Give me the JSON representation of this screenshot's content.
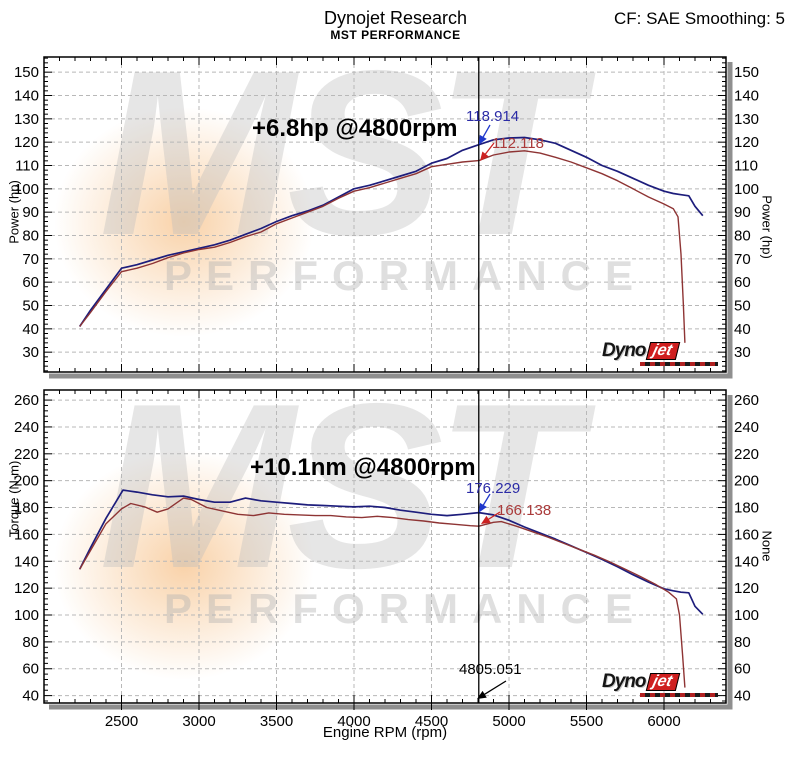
{
  "header": {
    "title": "Dynojet Research",
    "subtitle": "MST PERFORMANCE",
    "cf": "CF: SAE Smoothing: 5"
  },
  "watermark": {
    "big": "MST",
    "small": "PERFORMANCE"
  },
  "logo": {
    "part1": "Dyno",
    "part2": "jet"
  },
  "colors": {
    "curve_blue": "#1d1d7c",
    "curve_red": "#8e3434",
    "label_blue": "#2b2ba6",
    "label_red": "#aa3a3a",
    "grid": "#b8b8b8",
    "shadow": "#8f8f8f",
    "arrow_blue": "#2038cc",
    "arrow_red": "#cc2222"
  },
  "chart_data": [
    {
      "type": "line",
      "annotation": "+6.8hp @4800rpm",
      "ylabel_left": "Power (hp)",
      "ylabel_right": "Power (hp)",
      "xlabel": "",
      "xlim": [
        2000,
        6400
      ],
      "ylim": [
        21.5,
        156.5
      ],
      "yticks_min": 30,
      "yticks_max": 150,
      "ytick_step": 10,
      "ytick_minor": 2,
      "xticks": [
        2500,
        3000,
        3500,
        4000,
        4500,
        5000,
        5500,
        6000
      ],
      "xtick_minor": 100,
      "grid": "dashed",
      "cursor_rpm": 4805.051,
      "series": [
        {
          "name": "mst-tune-power",
          "color": "#1d1d7c",
          "points": [
            [
              2230,
              41
            ],
            [
              2300,
              48
            ],
            [
              2400,
              57
            ],
            [
              2500,
              66
            ],
            [
              2600,
              67.5
            ],
            [
              2700,
              69.5
            ],
            [
              2800,
              71.5
            ],
            [
              2900,
              73
            ],
            [
              3000,
              74.5
            ],
            [
              3100,
              76
            ],
            [
              3200,
              78
            ],
            [
              3300,
              80.5
            ],
            [
              3400,
              83
            ],
            [
              3500,
              86
            ],
            [
              3600,
              88.5
            ],
            [
              3700,
              90.5
            ],
            [
              3800,
              93
            ],
            [
              3900,
              96.5
            ],
            [
              4000,
              100
            ],
            [
              4100,
              101.5
            ],
            [
              4200,
              103.5
            ],
            [
              4300,
              105.5
            ],
            [
              4400,
              107.5
            ],
            [
              4500,
              111
            ],
            [
              4600,
              113
            ],
            [
              4700,
              116.5
            ],
            [
              4805,
              118.914
            ],
            [
              4900,
              121
            ],
            [
              5000,
              121.8
            ],
            [
              5100,
              122
            ],
            [
              5200,
              121
            ],
            [
              5300,
              119.5
            ],
            [
              5400,
              116.5
            ],
            [
              5500,
              113.5
            ],
            [
              5600,
              110
            ],
            [
              5700,
              107.5
            ],
            [
              5800,
              104.5
            ],
            [
              5900,
              101.5
            ],
            [
              6000,
              99
            ],
            [
              6060,
              98
            ],
            [
              6110,
              97.5
            ],
            [
              6160,
              97
            ],
            [
              6200,
              92.5
            ],
            [
              6250,
              88.5
            ]
          ]
        },
        {
          "name": "baseline-power",
          "color": "#8e3434",
          "points": [
            [
              2230,
              41
            ],
            [
              2300,
              47
            ],
            [
              2400,
              56
            ],
            [
              2500,
              64.5
            ],
            [
              2600,
              66
            ],
            [
              2700,
              68
            ],
            [
              2800,
              70.5
            ],
            [
              2900,
              72.5
            ],
            [
              3000,
              74
            ],
            [
              3100,
              75
            ],
            [
              3200,
              77
            ],
            [
              3300,
              79.5
            ],
            [
              3400,
              81.5
            ],
            [
              3500,
              85
            ],
            [
              3600,
              87.5
            ],
            [
              3700,
              90
            ],
            [
              3800,
              92.5
            ],
            [
              3900,
              96
            ],
            [
              4000,
              99
            ],
            [
              4100,
              100.5
            ],
            [
              4200,
              102.5
            ],
            [
              4300,
              104.5
            ],
            [
              4400,
              106.5
            ],
            [
              4500,
              109.5
            ],
            [
              4600,
              110.5
            ],
            [
              4700,
              111.5
            ],
            [
              4805,
              112.118
            ],
            [
              4900,
              114.5
            ],
            [
              5000,
              115.8
            ],
            [
              5100,
              116.3
            ],
            [
              5200,
              115.3
            ],
            [
              5300,
              113.5
            ],
            [
              5400,
              111.5
            ],
            [
              5500,
              109
            ],
            [
              5600,
              106.5
            ],
            [
              5700,
              103.5
            ],
            [
              5800,
              100
            ],
            [
              5900,
              96.5
            ],
            [
              6000,
              93.5
            ],
            [
              6060,
              91.5
            ],
            [
              6090,
              88
            ],
            [
              6110,
              72
            ],
            [
              6125,
              50
            ],
            [
              6135,
              34
            ]
          ]
        }
      ],
      "markers": [
        {
          "text": "118.914",
          "point": [
            4805,
            118.914
          ],
          "color": "#2b2ba6",
          "arrow": "#2038cc"
        },
        {
          "text": "112.118",
          "point": [
            4805,
            112.118
          ],
          "color": "#aa3a3a",
          "arrow": "#cc2222"
        }
      ]
    },
    {
      "type": "line",
      "annotation": "+10.1nm @4800rpm",
      "ylabel_left": "Torque (N-m)",
      "ylabel_right": "None",
      "xlabel": "Engine RPM (rpm)",
      "xlim": [
        2000,
        6400
      ],
      "ylim": [
        34.5,
        267.5
      ],
      "yticks_min": 40,
      "yticks_max": 260,
      "ytick_step": 20,
      "ytick_minor": 4,
      "xticks": [
        2500,
        3000,
        3500,
        4000,
        4500,
        5000,
        5500,
        6000
      ],
      "xtick_minor": 100,
      "grid": "dashed",
      "cursor_rpm": 4805.051,
      "cursor_label": "4805.051",
      "series": [
        {
          "name": "mst-tune-torque",
          "color": "#1d1d7c",
          "points": [
            [
              2230,
              134
            ],
            [
              2300,
              150
            ],
            [
              2400,
              172
            ],
            [
              2510,
              193
            ],
            [
              2600,
              191.5
            ],
            [
              2700,
              189.5
            ],
            [
              2800,
              188
            ],
            [
              2900,
              188.5
            ],
            [
              3000,
              186
            ],
            [
              3100,
              184
            ],
            [
              3200,
              184
            ],
            [
              3300,
              187
            ],
            [
              3400,
              185
            ],
            [
              3500,
              184
            ],
            [
              3600,
              183
            ],
            [
              3700,
              182
            ],
            [
              3800,
              181.5
            ],
            [
              3900,
              181
            ],
            [
              4000,
              180.5
            ],
            [
              4100,
              181
            ],
            [
              4200,
              180
            ],
            [
              4300,
              178
            ],
            [
              4400,
              176.5
            ],
            [
              4500,
              175
            ],
            [
              4600,
              174
            ],
            [
              4700,
              175
            ],
            [
              4805,
              176.229
            ],
            [
              4900,
              174.5
            ],
            [
              5000,
              170.5
            ],
            [
              5100,
              165.5
            ],
            [
              5200,
              161
            ],
            [
              5300,
              156.5
            ],
            [
              5400,
              151.5
            ],
            [
              5500,
              146.5
            ],
            [
              5600,
              141.5
            ],
            [
              5700,
              136
            ],
            [
              5800,
              130
            ],
            [
              5900,
              124.5
            ],
            [
              6000,
              119.5
            ],
            [
              6060,
              118
            ],
            [
              6110,
              117
            ],
            [
              6160,
              116.5
            ],
            [
              6200,
              106.5
            ],
            [
              6250,
              100.5
            ]
          ]
        },
        {
          "name": "baseline-torque",
          "color": "#8e3434",
          "points": [
            [
              2230,
              134
            ],
            [
              2300,
              148
            ],
            [
              2400,
              168
            ],
            [
              2500,
              179
            ],
            [
              2560,
              183
            ],
            [
              2650,
              180.5
            ],
            [
              2730,
              176.5
            ],
            [
              2800,
              179
            ],
            [
              2900,
              187
            ],
            [
              2950,
              186
            ],
            [
              3050,
              180
            ],
            [
              3150,
              177.5
            ],
            [
              3250,
              175
            ],
            [
              3350,
              174
            ],
            [
              3450,
              176
            ],
            [
              3550,
              175
            ],
            [
              3650,
              174.5
            ],
            [
              3750,
              174
            ],
            [
              3850,
              174
            ],
            [
              3950,
              173
            ],
            [
              4050,
              172.5
            ],
            [
              4150,
              173.5
            ],
            [
              4250,
              172.5
            ],
            [
              4350,
              171
            ],
            [
              4450,
              170
            ],
            [
              4550,
              168.5
            ],
            [
              4650,
              167.5
            ],
            [
              4750,
              166.5
            ],
            [
              4805,
              166.138
            ],
            [
              4900,
              169
            ],
            [
              4950,
              169.5
            ],
            [
              5050,
              166
            ],
            [
              5150,
              162
            ],
            [
              5250,
              158
            ],
            [
              5350,
              153.5
            ],
            [
              5450,
              149
            ],
            [
              5550,
              144.5
            ],
            [
              5650,
              139.5
            ],
            [
              5750,
              134
            ],
            [
              5850,
              128.5
            ],
            [
              5950,
              122.5
            ],
            [
              6030,
              117
            ],
            [
              6080,
              112
            ],
            [
              6100,
              100
            ],
            [
              6120,
              70
            ],
            [
              6135,
              46
            ]
          ]
        }
      ],
      "markers": [
        {
          "text": "176.229",
          "point": [
            4805,
            176.229
          ],
          "color": "#2b2ba6",
          "arrow": "#2038cc"
        },
        {
          "text": "166.138",
          "point": [
            4805,
            166.138
          ],
          "color": "#aa3a3a",
          "arrow": "#cc2222"
        }
      ]
    }
  ]
}
